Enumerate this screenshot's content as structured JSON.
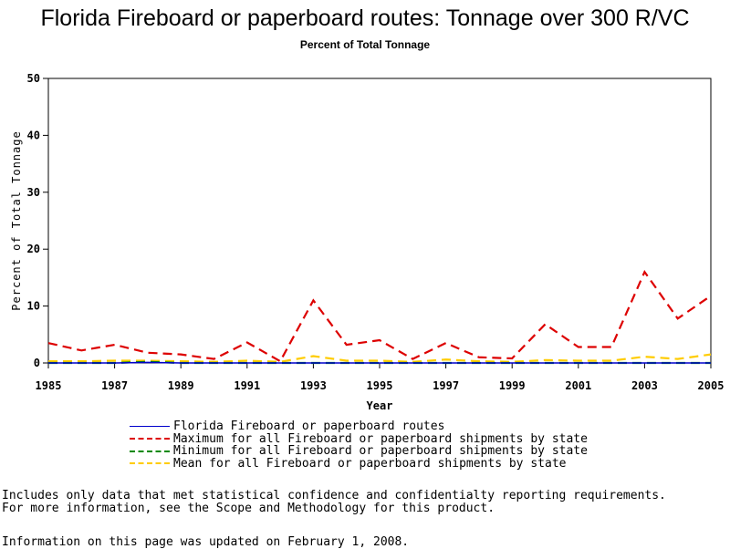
{
  "chart_data": {
    "type": "line",
    "title": "Florida Fireboard or paperboard routes: Tonnage over 300 R/VC",
    "subtitle": "Percent of Total Tonnage",
    "xlabel": "Year",
    "ylabel": "Percent of Total Tonnage",
    "xlim": [
      1985,
      2005
    ],
    "ylim": [
      0,
      50
    ],
    "x_ticks": [
      "1985",
      "1987",
      "1989",
      "1991",
      "1993",
      "1995",
      "1997",
      "1999",
      "2001",
      "2003",
      "2005"
    ],
    "y_ticks": [
      "0",
      "10",
      "20",
      "30",
      "40",
      "50"
    ],
    "grid": false,
    "legend_position": "bottom",
    "x": [
      1985,
      1986,
      1987,
      1988,
      1989,
      1990,
      1991,
      1992,
      1993,
      1994,
      1995,
      1996,
      1997,
      1998,
      1999,
      2000,
      2001,
      2002,
      2003,
      2004,
      2005
    ],
    "series": [
      {
        "name": "Florida Fireboard or paperboard routes",
        "color": "#0000cc",
        "dash": "solid",
        "values": [
          0,
          0,
          0,
          0.1,
          0,
          0,
          0,
          0,
          0,
          0,
          0,
          0,
          0,
          0,
          0,
          0,
          0,
          0,
          0,
          0,
          0
        ]
      },
      {
        "name": "Maximum for all Fireboard or paperboard shipments by state",
        "color": "#dd0000",
        "dash": "long",
        "values": [
          3.5,
          2.2,
          3.2,
          1.8,
          1.5,
          0.7,
          3.6,
          0.3,
          11.0,
          3.2,
          4.0,
          0.7,
          3.5,
          1.0,
          0.8,
          6.8,
          2.8,
          2.8,
          16.0,
          7.8,
          11.8
        ]
      },
      {
        "name": "Minimum for all Fireboard or paperboard shipments by state",
        "color": "#008800",
        "dash": "long",
        "values": [
          0,
          0,
          0,
          0.2,
          0,
          0,
          0,
          0,
          0,
          0,
          0,
          0,
          0,
          0,
          0,
          0,
          0,
          0,
          0,
          0,
          0
        ]
      },
      {
        "name": "Mean for all Fireboard or paperboard shipments by state",
        "color": "#ffcc00",
        "dash": "long",
        "values": [
          0.3,
          0.3,
          0.4,
          0.4,
          0.3,
          0.2,
          0.4,
          0.2,
          1.2,
          0.4,
          0.4,
          0.2,
          0.6,
          0.3,
          0.2,
          0.5,
          0.4,
          0.4,
          1.1,
          0.7,
          1.5
        ]
      }
    ]
  },
  "notes": [
    "Includes only data that met statistical confidence and confidentialty reporting requirements.",
    "For more information, see the Scope and Methodology for this product."
  ],
  "updated": "Information on this page was updated on February 1, 2008."
}
